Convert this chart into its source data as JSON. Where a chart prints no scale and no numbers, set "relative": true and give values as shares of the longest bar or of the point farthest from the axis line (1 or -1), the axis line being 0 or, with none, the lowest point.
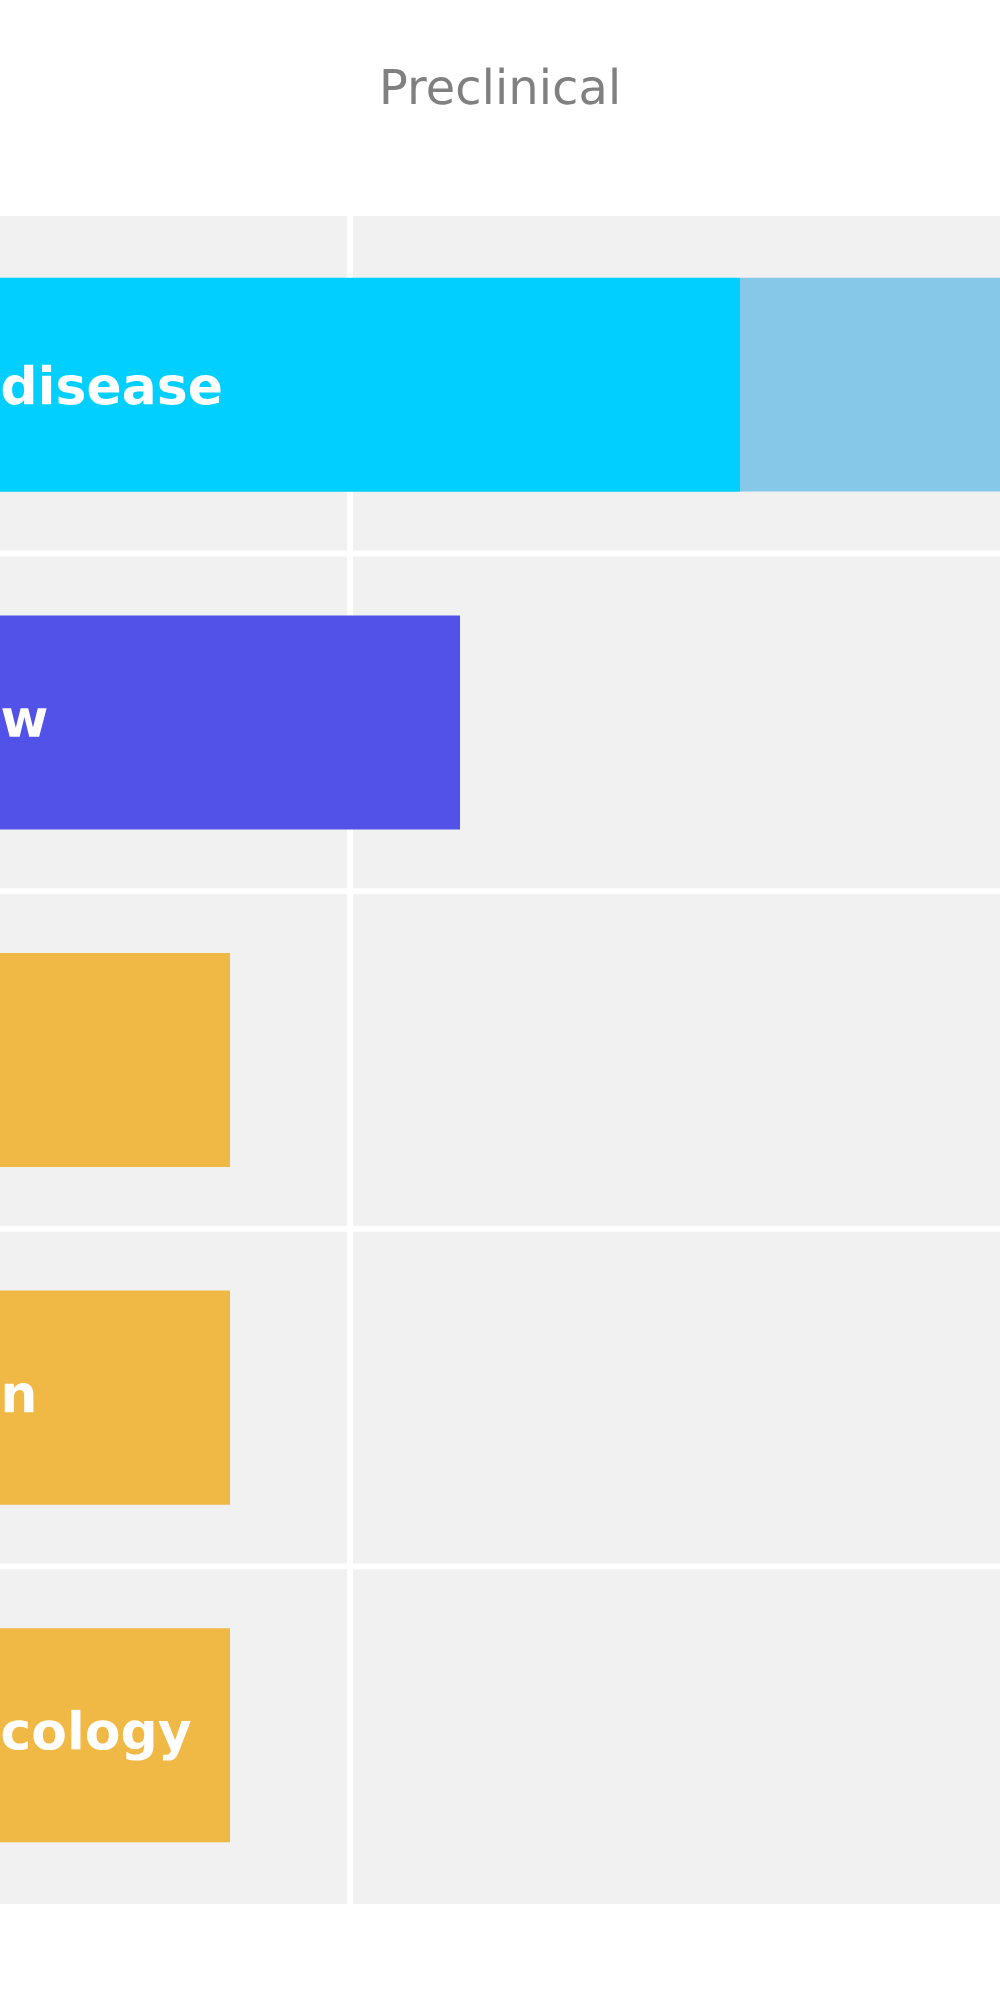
{
  "chart_data": {
    "type": "bar",
    "orientation": "horizontal",
    "stacked": true,
    "relative": true,
    "title": "Preclinical",
    "categories": [
      "disease",
      "w",
      null,
      "n",
      "cology"
    ],
    "series": [
      {
        "colors": [
          "#00cfff",
          "#5252e8",
          "#f0b946",
          "#f0b946",
          "#f0b946"
        ],
        "values": [
          0.74,
          0.46,
          0.23,
          0.23,
          0.23
        ]
      },
      {
        "color": "#85c8e8",
        "values": [
          0.26,
          null,
          null,
          null,
          null
        ]
      }
    ],
    "grid": "y",
    "ref_lines": [
      {
        "axis": "x",
        "value": 0.35,
        "color": "#ffffff"
      }
    ]
  }
}
